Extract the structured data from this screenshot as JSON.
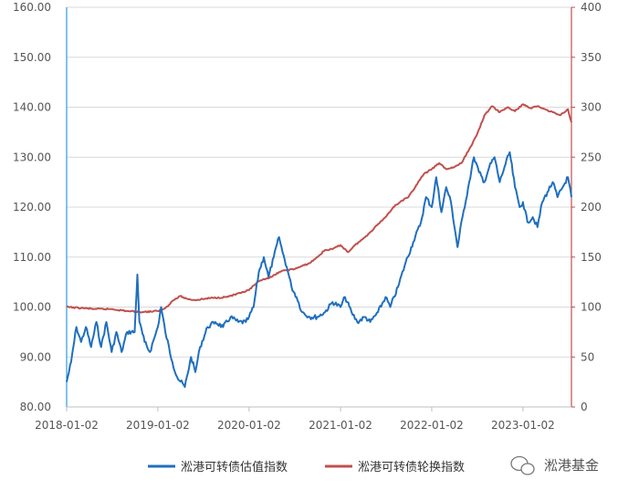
{
  "chart_data": {
    "type": "line",
    "x_ticks": [
      "2018-01-02",
      "2019-01-02",
      "2020-01-02",
      "2021-01-02",
      "2022-01-02",
      "2023-01-02"
    ],
    "y_left": {
      "ticks": [
        "80.00",
        "90.00",
        "100.00",
        "110.00",
        "120.00",
        "130.00",
        "140.00",
        "150.00",
        "160.00"
      ],
      "ylim": [
        80,
        160
      ]
    },
    "y_right": {
      "ticks": [
        "0",
        "50",
        "100",
        "150",
        "200",
        "250",
        "300",
        "350",
        "400"
      ],
      "ylim": [
        0,
        400
      ]
    },
    "grid": "horizontal",
    "legend_position": "bottom",
    "series": [
      {
        "name": "淞港可转债估值指数",
        "axis": "left",
        "color": "#1f6fbf",
        "points": [
          [
            "2018-01-02",
            85.0
          ],
          [
            "2018-01-20",
            89.0
          ],
          [
            "2018-02-10",
            96.0
          ],
          [
            "2018-03-01",
            93.0
          ],
          [
            "2018-03-20",
            96.0
          ],
          [
            "2018-04-10",
            92.0
          ],
          [
            "2018-05-01",
            97.0
          ],
          [
            "2018-05-20",
            92.0
          ],
          [
            "2018-06-10",
            97.0
          ],
          [
            "2018-07-01",
            91.0
          ],
          [
            "2018-07-20",
            95.0
          ],
          [
            "2018-08-10",
            91.0
          ],
          [
            "2018-09-01",
            95.0
          ],
          [
            "2018-10-01",
            95.0
          ],
          [
            "2018-10-12",
            106.5
          ],
          [
            "2018-10-20",
            97.0
          ],
          [
            "2018-11-10",
            93.0
          ],
          [
            "2018-12-01",
            91.0
          ],
          [
            "2018-12-20",
            94.0
          ],
          [
            "2019-01-02",
            96.0
          ],
          [
            "2019-01-15",
            100.0
          ],
          [
            "2019-02-01",
            95.0
          ],
          [
            "2019-03-01",
            89.0
          ],
          [
            "2019-03-20",
            86.0
          ],
          [
            "2019-04-20",
            84.0
          ],
          [
            "2019-05-15",
            90.0
          ],
          [
            "2019-06-01",
            87.0
          ],
          [
            "2019-06-20",
            92.0
          ],
          [
            "2019-07-20",
            96.0
          ],
          [
            "2019-08-20",
            97.0
          ],
          [
            "2019-09-20",
            96.0
          ],
          [
            "2019-10-20",
            98.0
          ],
          [
            "2019-11-20",
            97.0
          ],
          [
            "2019-12-20",
            97.0
          ],
          [
            "2020-01-02",
            98.0
          ],
          [
            "2020-01-20",
            100.0
          ],
          [
            "2020-02-10",
            107.0
          ],
          [
            "2020-03-01",
            110.0
          ],
          [
            "2020-03-20",
            106.0
          ],
          [
            "2020-04-10",
            110.0
          ],
          [
            "2020-05-01",
            114.0
          ],
          [
            "2020-05-15",
            111.0
          ],
          [
            "2020-06-01",
            108.0
          ],
          [
            "2020-06-20",
            104.0
          ],
          [
            "2020-07-10",
            102.0
          ],
          [
            "2020-08-01",
            99.0
          ],
          [
            "2020-09-01",
            98.0
          ],
          [
            "2020-10-01",
            98.0
          ],
          [
            "2020-11-01",
            99.0
          ],
          [
            "2020-12-01",
            101.0
          ],
          [
            "2021-01-02",
            100.0
          ],
          [
            "2021-01-20",
            102.0
          ],
          [
            "2021-02-15",
            99.0
          ],
          [
            "2021-03-10",
            97.0
          ],
          [
            "2021-04-10",
            98.0
          ],
          [
            "2021-05-01",
            97.0
          ],
          [
            "2021-06-01",
            99.0
          ],
          [
            "2021-07-01",
            102.0
          ],
          [
            "2021-07-20",
            100.0
          ],
          [
            "2021-08-20",
            104.0
          ],
          [
            "2021-09-20",
            109.0
          ],
          [
            "2021-10-20",
            113.0
          ],
          [
            "2021-11-20",
            117.0
          ],
          [
            "2021-12-10",
            122.0
          ],
          [
            "2022-01-02",
            120.0
          ],
          [
            "2022-01-20",
            126.0
          ],
          [
            "2022-02-10",
            119.0
          ],
          [
            "2022-03-01",
            124.0
          ],
          [
            "2022-03-20",
            121.0
          ],
          [
            "2022-04-15",
            112.0
          ],
          [
            "2022-05-05",
            118.0
          ],
          [
            "2022-06-01",
            125.0
          ],
          [
            "2022-06-20",
            130.0
          ],
          [
            "2022-07-10",
            127.0
          ],
          [
            "2022-08-01",
            125.0
          ],
          [
            "2022-08-20",
            128.0
          ],
          [
            "2022-09-10",
            130.0
          ],
          [
            "2022-10-01",
            125.0
          ],
          [
            "2022-10-20",
            128.0
          ],
          [
            "2022-11-10",
            131.0
          ],
          [
            "2022-12-01",
            124.0
          ],
          [
            "2022-12-20",
            120.0
          ],
          [
            "2023-01-02",
            121.0
          ],
          [
            "2023-01-20",
            117.0
          ],
          [
            "2023-02-10",
            118.0
          ],
          [
            "2023-03-01",
            116.0
          ],
          [
            "2023-03-20",
            121.0
          ],
          [
            "2023-04-10",
            123.0
          ],
          [
            "2023-05-01",
            125.0
          ],
          [
            "2023-05-20",
            122.0
          ],
          [
            "2023-06-10",
            124.0
          ],
          [
            "2023-07-01",
            126.0
          ],
          [
            "2023-07-15",
            122.0
          ]
        ]
      },
      {
        "name": "淞港可转债轮换指数",
        "axis": "right",
        "color": "#c0504d",
        "points": [
          [
            "2018-01-02",
            100
          ],
          [
            "2018-03-01",
            99
          ],
          [
            "2018-05-01",
            98
          ],
          [
            "2018-07-01",
            98
          ],
          [
            "2018-09-01",
            96
          ],
          [
            "2018-11-01",
            95
          ],
          [
            "2019-01-02",
            96
          ],
          [
            "2019-02-01",
            99
          ],
          [
            "2019-03-01",
            106
          ],
          [
            "2019-04-01",
            111
          ],
          [
            "2019-05-01",
            108
          ],
          [
            "2019-06-01",
            107
          ],
          [
            "2019-08-01",
            109
          ],
          [
            "2019-10-01",
            110
          ],
          [
            "2019-12-01",
            114
          ],
          [
            "2020-01-02",
            117
          ],
          [
            "2020-02-01",
            124
          ],
          [
            "2020-03-01",
            128
          ],
          [
            "2020-04-01",
            130
          ],
          [
            "2020-05-01",
            135
          ],
          [
            "2020-06-01",
            137
          ],
          [
            "2020-07-01",
            138
          ],
          [
            "2020-08-01",
            141
          ],
          [
            "2020-09-01",
            144
          ],
          [
            "2020-10-01",
            150
          ],
          [
            "2020-11-01",
            157
          ],
          [
            "2020-12-01",
            158
          ],
          [
            "2021-01-02",
            162
          ],
          [
            "2021-02-01",
            155
          ],
          [
            "2021-03-01",
            162
          ],
          [
            "2021-04-01",
            168
          ],
          [
            "2021-05-01",
            175
          ],
          [
            "2021-06-01",
            183
          ],
          [
            "2021-07-01",
            190
          ],
          [
            "2021-08-01",
            200
          ],
          [
            "2021-09-01",
            206
          ],
          [
            "2021-10-01",
            210
          ],
          [
            "2021-11-01",
            222
          ],
          [
            "2021-12-01",
            233
          ],
          [
            "2022-01-02",
            238
          ],
          [
            "2022-02-01",
            244
          ],
          [
            "2022-03-01",
            238
          ],
          [
            "2022-04-01",
            240
          ],
          [
            "2022-05-01",
            244
          ],
          [
            "2022-06-01",
            258
          ],
          [
            "2022-07-01",
            272
          ],
          [
            "2022-08-01",
            292
          ],
          [
            "2022-09-01",
            301
          ],
          [
            "2022-10-01",
            295
          ],
          [
            "2022-11-01",
            300
          ],
          [
            "2022-12-01",
            296
          ],
          [
            "2023-01-02",
            303
          ],
          [
            "2023-02-01",
            299
          ],
          [
            "2023-03-01",
            301
          ],
          [
            "2023-04-01",
            298
          ],
          [
            "2023-05-01",
            295
          ],
          [
            "2023-06-01",
            292
          ],
          [
            "2023-07-01",
            298
          ],
          [
            "2023-07-15",
            285
          ]
        ]
      }
    ]
  },
  "watermark": {
    "text": "淞港基金",
    "icon": "wechat-icon"
  }
}
